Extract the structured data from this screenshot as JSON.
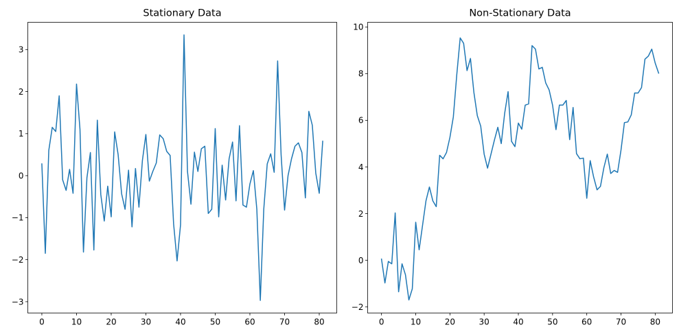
{
  "chart_data": [
    {
      "type": "line",
      "title": "Stationary Data",
      "xlabel": "",
      "ylabel": "",
      "xlim": [
        -4.05,
        85.05
      ],
      "ylim": [
        -3.27,
        3.65
      ],
      "xticks": [
        0,
        10,
        20,
        30,
        40,
        50,
        60,
        70,
        80
      ],
      "yticks": [
        -3,
        -2,
        -1,
        0,
        1,
        2,
        3
      ],
      "grid": false,
      "series": [
        {
          "color": "#1f77b4",
          "x": [
            0,
            1,
            2,
            3,
            4,
            5,
            6,
            7,
            8,
            9,
            10,
            11,
            12,
            13,
            14,
            15,
            16,
            17,
            18,
            19,
            20,
            21,
            22,
            23,
            24,
            25,
            26,
            27,
            28,
            29,
            30,
            31,
            32,
            33,
            34,
            35,
            36,
            37,
            38,
            39,
            40,
            41,
            42,
            43,
            44,
            45,
            46,
            47,
            48,
            49,
            50,
            51,
            52,
            53,
            54,
            55,
            56,
            57,
            58,
            59,
            60,
            61,
            62,
            63,
            64,
            65,
            66,
            67,
            68,
            69,
            70,
            71,
            72,
            73,
            74,
            75,
            76,
            77,
            78,
            79,
            80,
            81
          ],
          "values": [
            0.28,
            -1.85,
            0.6,
            1.15,
            1.05,
            1.9,
            -0.1,
            -0.35,
            0.15,
            -0.42,
            2.18,
            1.1,
            -1.82,
            -0.05,
            0.55,
            -1.77,
            1.32,
            -0.45,
            -1.08,
            -0.25,
            -0.98,
            1.04,
            0.5,
            -0.43,
            -0.8,
            0.13,
            -1.22,
            0.17,
            -0.75,
            0.36,
            0.98,
            -0.13,
            0.1,
            0.3,
            0.97,
            0.88,
            0.58,
            0.48,
            -1.15,
            -2.03,
            -1.17,
            3.35,
            0.1,
            -0.68,
            0.56,
            0.1,
            0.64,
            0.7,
            -0.9,
            -0.8,
            1.12,
            -0.98,
            0.25,
            -0.58,
            0.4,
            0.8,
            -0.6,
            1.19,
            -0.7,
            -0.75,
            -0.2,
            0.12,
            -0.8,
            -2.97,
            -0.8,
            0.28,
            0.52,
            0.08,
            2.73,
            0.5,
            -0.82,
            0.0,
            0.4,
            0.7,
            0.78,
            0.55,
            -0.53,
            1.53,
            1.2,
            0.06,
            -0.42,
            0.82
          ]
        }
      ]
    },
    {
      "type": "line",
      "title": "Non-Stationary Data",
      "xlabel": "",
      "ylabel": "",
      "xlim": [
        -4.05,
        85.05
      ],
      "ylim": [
        -2.26,
        10.2
      ],
      "xticks": [
        0,
        10,
        20,
        30,
        40,
        50,
        60,
        70,
        80
      ],
      "yticks": [
        -2,
        0,
        2,
        4,
        6,
        8,
        10
      ],
      "grid": false,
      "series": [
        {
          "color": "#1f77b4",
          "x": [
            0,
            1,
            2,
            3,
            4,
            5,
            6,
            7,
            8,
            9,
            10,
            11,
            12,
            13,
            14,
            15,
            16,
            17,
            18,
            19,
            20,
            21,
            22,
            23,
            24,
            25,
            26,
            27,
            28,
            29,
            30,
            31,
            32,
            33,
            34,
            35,
            36,
            37,
            38,
            39,
            40,
            41,
            42,
            43,
            44,
            45,
            46,
            47,
            48,
            49,
            50,
            51,
            52,
            53,
            54,
            55,
            56,
            57,
            58,
            59,
            60,
            61,
            62,
            63,
            64,
            65,
            66,
            67,
            68,
            69,
            70,
            71,
            72,
            73,
            74,
            75,
            76,
            77,
            78,
            79,
            80,
            81
          ],
          "values": [
            0.05,
            -0.97,
            -0.05,
            -0.15,
            2.03,
            -1.35,
            -0.15,
            -0.62,
            -1.7,
            -1.22,
            1.63,
            0.45,
            1.5,
            2.55,
            3.14,
            2.55,
            2.3,
            4.5,
            4.35,
            4.62,
            5.27,
            6.15,
            7.95,
            9.53,
            9.3,
            8.13,
            8.65,
            7.2,
            6.2,
            5.75,
            4.55,
            3.95,
            4.55,
            5.15,
            5.7,
            5.0,
            6.3,
            7.23,
            5.1,
            4.87,
            5.88,
            5.62,
            6.65,
            6.7,
            9.2,
            9.05,
            8.2,
            8.27,
            7.6,
            7.3,
            6.65,
            5.6,
            6.65,
            6.65,
            6.85,
            5.17,
            6.55,
            4.57,
            4.35,
            4.38,
            2.66,
            4.27,
            3.57,
            3.02,
            3.17,
            3.97,
            4.55,
            3.72,
            3.85,
            3.77,
            4.72,
            5.9,
            5.93,
            6.23,
            7.17,
            7.17,
            7.4,
            8.62,
            8.75,
            9.05,
            8.45,
            8.02
          ]
        }
      ]
    }
  ]
}
